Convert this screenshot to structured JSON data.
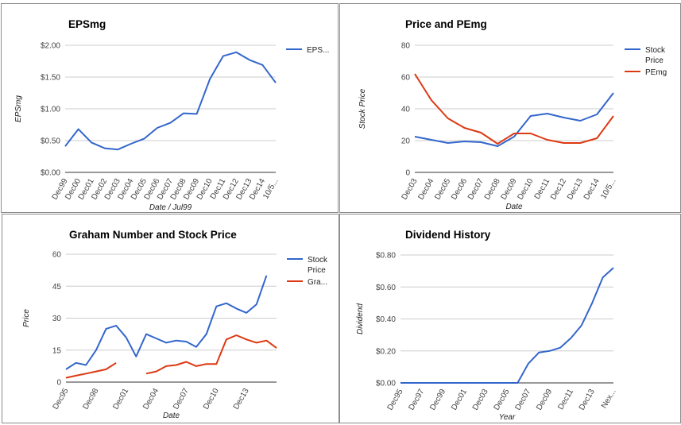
{
  "chart_data": [
    {
      "type": "line",
      "title": "EPSmg",
      "xlabel": "Date / Jul99",
      "ylabel": "EPSmg",
      "categories": [
        "Dec99",
        "Dec00",
        "Dec01",
        "Dec02",
        "Dec03",
        "Dec04",
        "Dec05",
        "Dec06",
        "Dec07",
        "Dec08",
        "Dec09",
        "Dec10",
        "Dec11",
        "Dec12",
        "Dec13",
        "Dec14",
        "10/5..."
      ],
      "ylim": [
        0,
        2
      ],
      "yticks": [
        "$0.00",
        "$0.50",
        "$1.00",
        "$1.50",
        "$2.00"
      ],
      "yticks_values": [
        0,
        0.5,
        1,
        1.5,
        2
      ],
      "series": [
        {
          "name": "EPS...",
          "color": "#3366cc",
          "values": [
            0.41,
            0.68,
            0.47,
            0.38,
            0.36,
            0.45,
            0.53,
            0.7,
            0.78,
            0.93,
            0.92,
            1.47,
            1.83,
            1.89,
            1.77,
            1.69,
            1.41
          ]
        }
      ],
      "legend_position": "right"
    },
    {
      "type": "line",
      "title": "Price and PEmg",
      "xlabel": "Date",
      "ylabel": "Stock Price",
      "categories": [
        "Dec03",
        "Dec04",
        "Dec05",
        "Dec06",
        "Dec07",
        "Dec08",
        "Dec09",
        "Dec10",
        "Dec11",
        "Dec12",
        "Dec13",
        "Dec14",
        "10/5..."
      ],
      "ylim": [
        0,
        80
      ],
      "yticks": [
        "0",
        "20",
        "40",
        "60",
        "80"
      ],
      "yticks_values": [
        0,
        20,
        40,
        60,
        80
      ],
      "series": [
        {
          "name": "Stock Price",
          "name_lines": [
            "Stock",
            "Price"
          ],
          "color": "#3366cc",
          "values": [
            22.5,
            20.5,
            18.5,
            19.5,
            19,
            16.5,
            22.5,
            35.5,
            37,
            34.5,
            32.5,
            36.5,
            50
          ]
        },
        {
          "name": "PEmg",
          "name_lines": [
            "PEmg"
          ],
          "color": "#dc3912",
          "values": [
            62,
            45.5,
            34,
            28,
            25,
            18,
            24.5,
            24.5,
            20.5,
            18.5,
            18.5,
            21.5,
            35.5
          ]
        }
      ],
      "legend_position": "right"
    },
    {
      "type": "line",
      "title": "Graham Number and Stock Price",
      "xlabel": "Date",
      "ylabel": "Price",
      "tick_labels": [
        "Dec95",
        "Dec98",
        "Dec01",
        "Dec04",
        "Dec07",
        "Dec10",
        "Dec13"
      ],
      "tick_indices": [
        0,
        3,
        6,
        9,
        12,
        15,
        18
      ],
      "x_count": 22,
      "ylim": [
        0,
        60
      ],
      "yticks": [
        "0",
        "15",
        "30",
        "45",
        "60"
      ],
      "yticks_values": [
        0,
        15,
        30,
        45,
        60
      ],
      "series": [
        {
          "name": "Stock Price",
          "name_lines": [
            "Stock",
            "Price"
          ],
          "color": "#3366cc",
          "values": [
            6,
            9,
            8,
            15,
            25,
            26.5,
            21,
            12,
            22.5,
            20.5,
            18.5,
            19.5,
            19,
            16.5,
            22.5,
            35.5,
            37,
            34.5,
            32.5,
            36.5,
            50
          ]
        },
        {
          "name": "Gra...",
          "name_lines": [
            "Gra..."
          ],
          "color": "#dc3912",
          "values": [
            2,
            3,
            4,
            5,
            6,
            9,
            null,
            null,
            4,
            5,
            7.5,
            8,
            9.5,
            7.5,
            8.5,
            8.5,
            20,
            22,
            20,
            18.5,
            19.5,
            16
          ]
        }
      ],
      "legend_position": "right"
    },
    {
      "type": "line",
      "title": "Dividend History",
      "xlabel": "Year",
      "ylabel": "Dividend",
      "tick_labels": [
        "Dec95",
        "Dec97",
        "Dec99",
        "Dec01",
        "Dec03",
        "Dec05",
        "Dec07",
        "Dec09",
        "Dec11",
        "Dec13",
        "Nex..."
      ],
      "tick_indices": [
        0,
        2,
        4,
        6,
        8,
        10,
        12,
        14,
        16,
        18,
        20
      ],
      "x_count": 21,
      "ylim": [
        0,
        0.8
      ],
      "yticks": [
        "$0.00",
        "$0.20",
        "$0.40",
        "$0.60",
        "$0.80"
      ],
      "yticks_values": [
        0,
        0.2,
        0.4,
        0.6,
        0.8
      ],
      "series": [
        {
          "name": "",
          "color": "#3366cc",
          "values": [
            0,
            0,
            0,
            0,
            0,
            0,
            0,
            0,
            0,
            0,
            0,
            0,
            0.12,
            0.19,
            0.2,
            0.22,
            0.28,
            0.36,
            0.5,
            0.66,
            0.72
          ]
        }
      ]
    }
  ]
}
